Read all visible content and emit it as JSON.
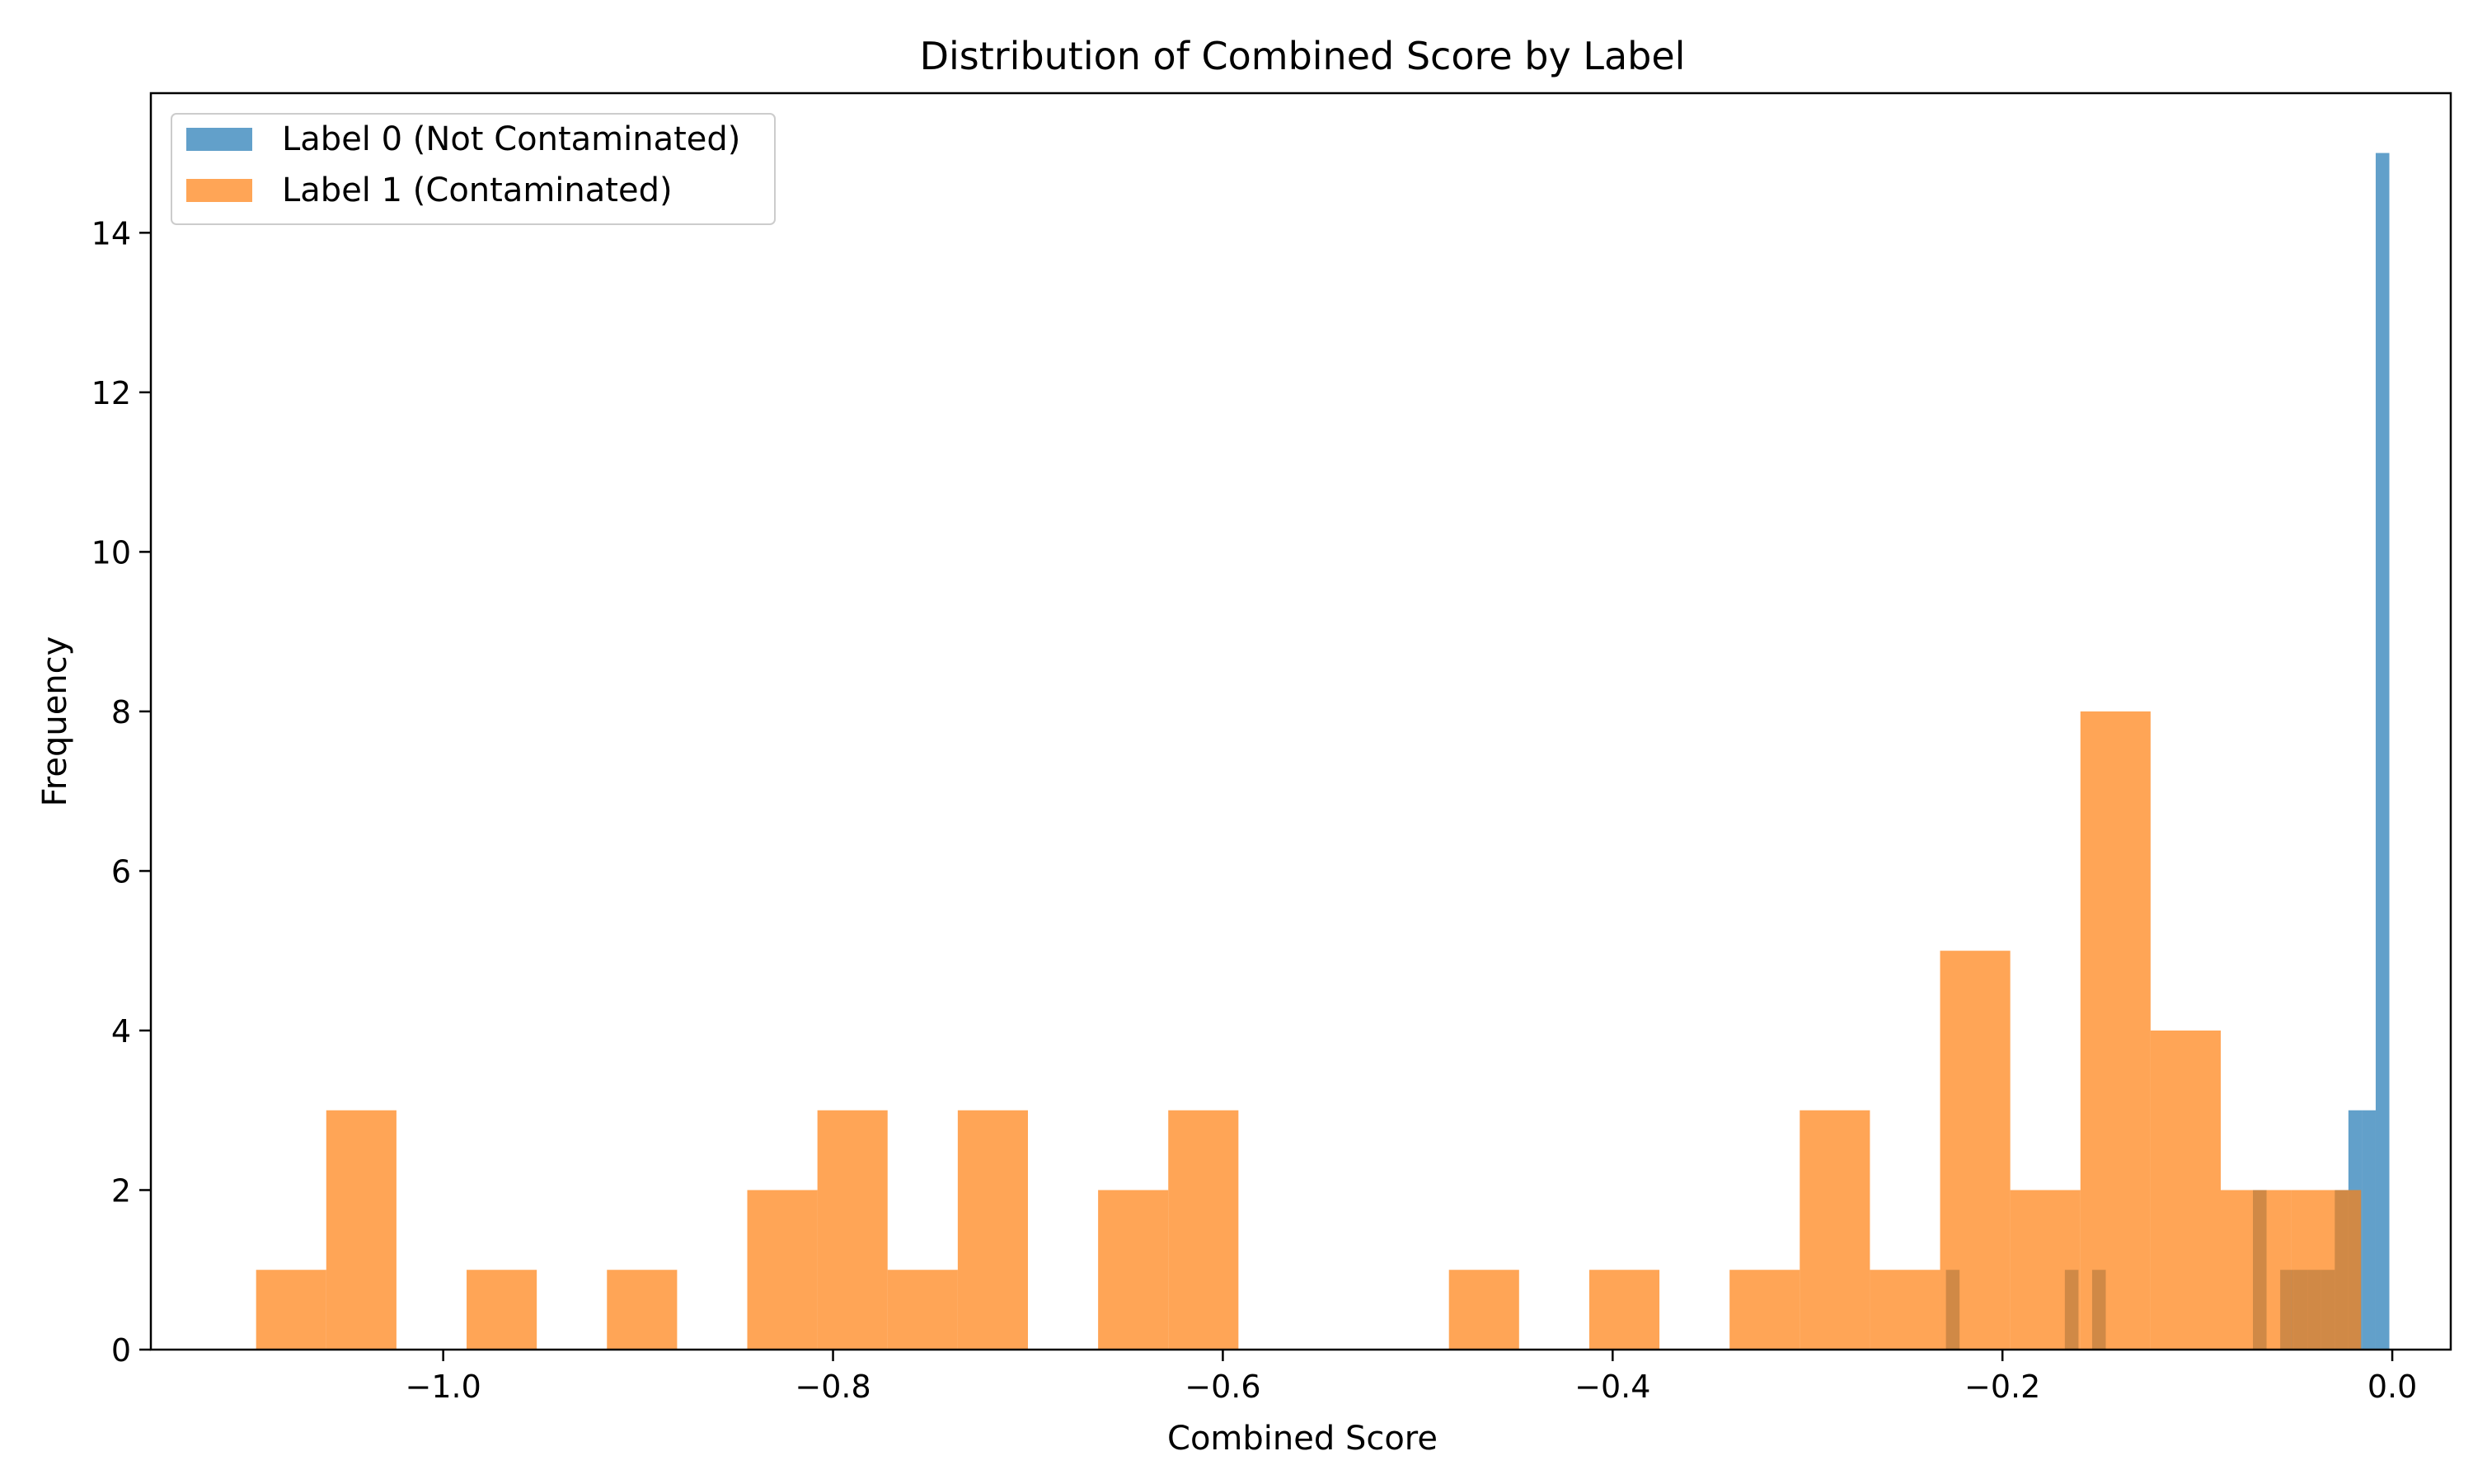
{
  "chart_data": {
    "type": "bar",
    "title": "Distribution of Combined Score by Label",
    "xlabel": "Combined Score",
    "ylabel": "Frequency",
    "xlim": [
      -1.15,
      0.03
    ],
    "ylim": [
      0,
      15.75
    ],
    "xticks": [
      -1.0,
      -0.8,
      -0.6,
      -0.4,
      -0.2,
      0.0
    ],
    "xtick_labels": [
      "−1.0",
      "−0.8",
      "−0.6",
      "−0.4",
      "−0.2",
      "0.0"
    ],
    "yticks": [
      0,
      2,
      4,
      6,
      8,
      10,
      12,
      14
    ],
    "ytick_labels": [
      "0",
      "2",
      "4",
      "6",
      "8",
      "10",
      "12",
      "14"
    ],
    "grid": false,
    "legend_position": "top-left",
    "series": [
      {
        "name": "Label 0 (Not Contaminated)",
        "color": "#1f77b4",
        "opacity": 0.7,
        "bins": [
          {
            "x0": -0.229,
            "x1": -0.222,
            "count": 1
          },
          {
            "x0": -0.168,
            "x1": -0.161,
            "count": 1
          },
          {
            "x0": -0.154,
            "x1": -0.147,
            "count": 1
          },
          {
            "x0": -0.0715,
            "x1": -0.0645,
            "count": 2
          },
          {
            "x0": -0.0575,
            "x1": -0.0505,
            "count": 1
          },
          {
            "x0": -0.0505,
            "x1": -0.0435,
            "count": 1
          },
          {
            "x0": -0.0435,
            "x1": -0.0365,
            "count": 1
          },
          {
            "x0": -0.0365,
            "x1": -0.0295,
            "count": 1
          },
          {
            "x0": -0.0295,
            "x1": -0.0225,
            "count": 2
          },
          {
            "x0": -0.0225,
            "x1": -0.0155,
            "count": 3
          },
          {
            "x0": -0.0155,
            "x1": -0.0085,
            "count": 3
          },
          {
            "x0": -0.0085,
            "x1": -0.0015,
            "count": 15
          }
        ]
      },
      {
        "name": "Label 1 (Contaminated)",
        "color": "#ff7f0e",
        "opacity": 0.7,
        "bins": [
          {
            "x0": -1.096,
            "x1": -1.06,
            "count": 1
          },
          {
            "x0": -1.06,
            "x1": -1.024,
            "count": 3
          },
          {
            "x0": -1.024,
            "x1": -0.988,
            "count": 0
          },
          {
            "x0": -0.988,
            "x1": -0.952,
            "count": 1
          },
          {
            "x0": -0.952,
            "x1": -0.916,
            "count": 0
          },
          {
            "x0": -0.916,
            "x1": -0.88,
            "count": 1
          },
          {
            "x0": -0.88,
            "x1": -0.844,
            "count": 0
          },
          {
            "x0": -0.844,
            "x1": -0.808,
            "count": 2
          },
          {
            "x0": -0.808,
            "x1": -0.772,
            "count": 3
          },
          {
            "x0": -0.772,
            "x1": -0.736,
            "count": 1
          },
          {
            "x0": -0.736,
            "x1": -0.7,
            "count": 3
          },
          {
            "x0": -0.7,
            "x1": -0.664,
            "count": 0
          },
          {
            "x0": -0.664,
            "x1": -0.628,
            "count": 2
          },
          {
            "x0": -0.628,
            "x1": -0.592,
            "count": 3
          },
          {
            "x0": -0.592,
            "x1": -0.556,
            "count": 0
          },
          {
            "x0": -0.556,
            "x1": -0.52,
            "count": 0
          },
          {
            "x0": -0.52,
            "x1": -0.484,
            "count": 0
          },
          {
            "x0": -0.484,
            "x1": -0.448,
            "count": 1
          },
          {
            "x0": -0.448,
            "x1": -0.412,
            "count": 0
          },
          {
            "x0": -0.412,
            "x1": -0.376,
            "count": 1
          },
          {
            "x0": -0.376,
            "x1": -0.34,
            "count": 0
          },
          {
            "x0": -0.34,
            "x1": -0.304,
            "count": 1
          },
          {
            "x0": -0.304,
            "x1": -0.268,
            "count": 3
          },
          {
            "x0": -0.268,
            "x1": -0.232,
            "count": 1
          },
          {
            "x0": -0.232,
            "x1": -0.196,
            "count": 5
          },
          {
            "x0": -0.196,
            "x1": -0.16,
            "count": 2
          },
          {
            "x0": -0.16,
            "x1": -0.124,
            "count": 8
          },
          {
            "x0": -0.124,
            "x1": -0.088,
            "count": 4
          },
          {
            "x0": -0.088,
            "x1": -0.052,
            "count": 2
          },
          {
            "x0": -0.052,
            "x1": -0.016,
            "count": 2
          }
        ]
      }
    ]
  }
}
